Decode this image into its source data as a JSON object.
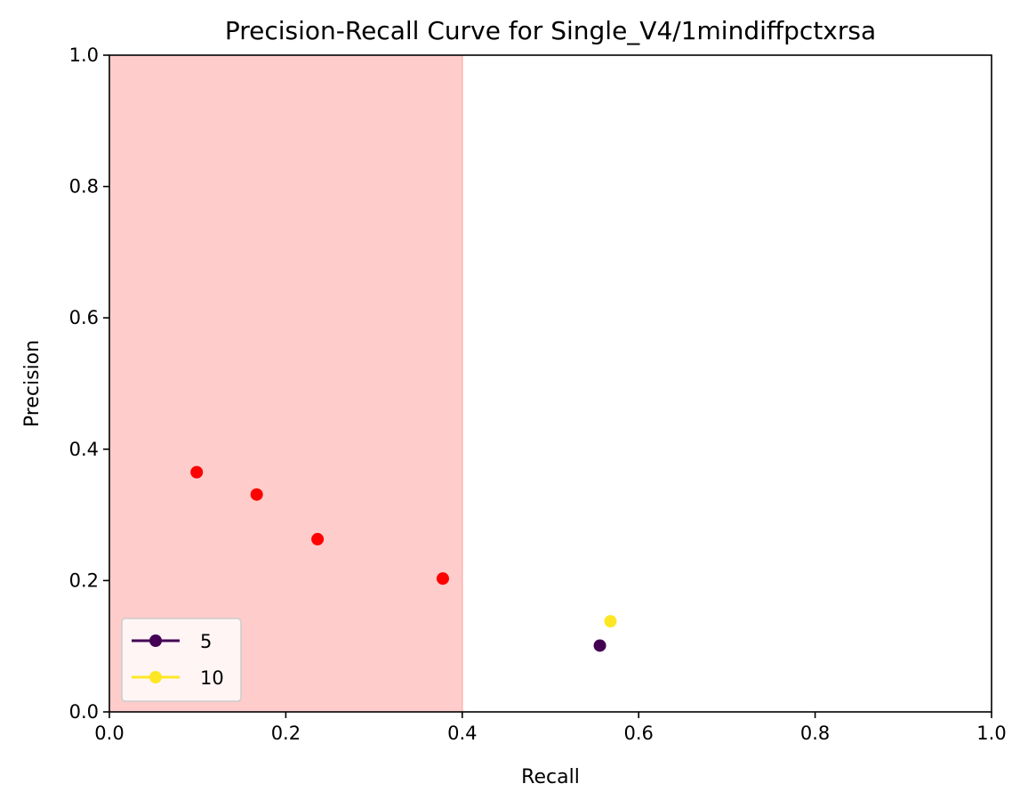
{
  "chart_data": {
    "type": "scatter",
    "title": "Precision-Recall Curve for Single_V4/1mindiffpctxrsa",
    "xlabel": "Recall",
    "ylabel": "Precision",
    "xlim": [
      0.0,
      1.0
    ],
    "ylim": [
      0.0,
      1.0
    ],
    "xticks": [
      "0.0",
      "0.2",
      "0.4",
      "0.6",
      "0.8",
      "1.0"
    ],
    "yticks": [
      "0.0",
      "0.2",
      "0.4",
      "0.6",
      "0.8",
      "1.0"
    ],
    "grid": false,
    "shaded_region": {
      "x_start": 0.0,
      "x_end": 0.4,
      "color": "#ffcccc"
    },
    "series": [
      {
        "name": "5",
        "color": "#440154",
        "points": [
          [
            0.556,
            0.101
          ]
        ]
      },
      {
        "name": "10",
        "color": "#fde725",
        "points": [
          [
            0.568,
            0.138
          ]
        ]
      }
    ],
    "highlighted_points": {
      "color": "#ff0000",
      "points": [
        [
          0.099,
          0.365
        ],
        [
          0.167,
          0.331
        ],
        [
          0.236,
          0.263
        ],
        [
          0.378,
          0.203
        ]
      ]
    },
    "legend_position": "lower-left"
  }
}
